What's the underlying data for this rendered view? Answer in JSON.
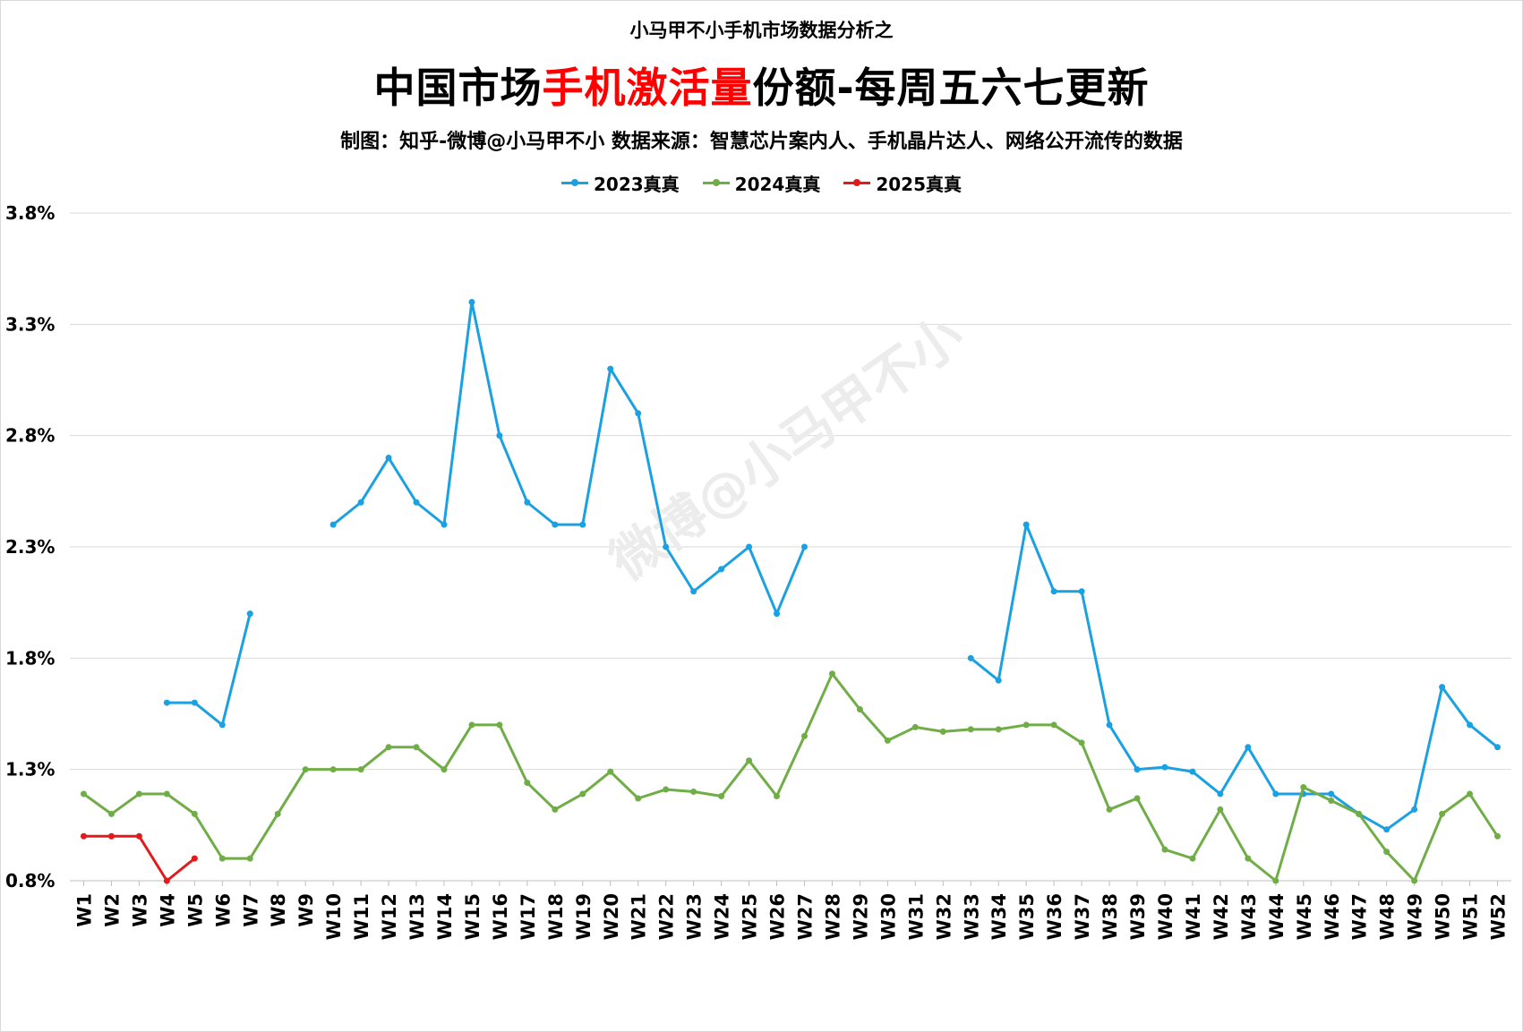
{
  "supertitle": "小马甲不小手机市场数据分析之",
  "title": {
    "prefix": "中国市场",
    "highlight": "手机激活量",
    "suffix": "份额-每周五六七更新"
  },
  "subtitle": "制图：知乎-微博@小马甲不小  数据来源：智慧芯片案内人、手机晶片达人、网络公开流传的数据",
  "watermark": "微博@小马甲不小",
  "colors": {
    "series_2023": "#1ba1e2",
    "series_2024": "#70ad47",
    "series_2025": "#e31a1c",
    "highlight": "#ff0000",
    "grid": "#d9d9d9"
  },
  "chart_data": {
    "type": "line",
    "title": "中国市场手机激活量份额-每周五六七更新",
    "xlabel": "",
    "ylabel": "",
    "ylim": [
      0.8,
      3.8
    ],
    "yticks": [
      "0.8%",
      "1.3%",
      "1.8%",
      "2.3%",
      "2.8%",
      "3.3%",
      "3.8%"
    ],
    "ytick_values": [
      0.8,
      1.3,
      1.8,
      2.3,
      2.8,
      3.3,
      3.8
    ],
    "grid": "horizontal",
    "legend_position": "top-center",
    "categories": [
      "W1",
      "W2",
      "W3",
      "W4",
      "W5",
      "W6",
      "W7",
      "W8",
      "W9",
      "W10",
      "W11",
      "W12",
      "W13",
      "W14",
      "W15",
      "W16",
      "W17",
      "W18",
      "W19",
      "W20",
      "W21",
      "W22",
      "W23",
      "W24",
      "W25",
      "W26",
      "W27",
      "W28",
      "W29",
      "W30",
      "W31",
      "W32",
      "W33",
      "W34",
      "W35",
      "W36",
      "W37",
      "W38",
      "W39",
      "W40",
      "W41",
      "W42",
      "W43",
      "W44",
      "W45",
      "W46",
      "W47",
      "W48",
      "W49",
      "W50",
      "W51",
      "W52"
    ],
    "series": [
      {
        "name": "2023真真",
        "color": "#1ba1e2",
        "values": [
          null,
          null,
          null,
          1.6,
          1.6,
          1.5,
          2.0,
          null,
          null,
          2.4,
          2.5,
          2.7,
          2.5,
          2.4,
          3.4,
          2.8,
          2.5,
          2.4,
          2.4,
          3.1,
          2.9,
          2.3,
          2.1,
          2.2,
          2.3,
          2.0,
          2.3,
          null,
          null,
          null,
          null,
          null,
          1.8,
          1.7,
          2.4,
          2.1,
          2.1,
          1.5,
          1.3,
          1.31,
          1.29,
          1.19,
          1.4,
          1.19,
          1.19,
          1.19,
          1.1,
          1.03,
          1.12,
          1.67,
          1.5,
          1.4
        ]
      },
      {
        "name": "2024真真",
        "color": "#70ad47",
        "values": [
          1.19,
          1.1,
          1.19,
          1.19,
          1.1,
          0.9,
          0.9,
          1.1,
          1.3,
          1.3,
          1.3,
          1.4,
          1.4,
          1.3,
          1.5,
          1.5,
          1.24,
          1.12,
          1.19,
          1.29,
          1.17,
          1.21,
          1.2,
          1.18,
          1.34,
          1.18,
          1.45,
          1.73,
          1.57,
          1.43,
          1.49,
          1.47,
          1.48,
          1.48,
          1.5,
          1.5,
          1.42,
          1.12,
          1.17,
          0.94,
          0.9,
          1.12,
          0.9,
          0.8,
          1.22,
          1.16,
          1.1,
          0.93,
          0.8,
          1.1,
          1.19,
          1.0
        ]
      },
      {
        "name": "2025真真",
        "color": "#e31a1c",
        "values": [
          1.0,
          1.0,
          1.0,
          0.8,
          0.9,
          null,
          null,
          null,
          null,
          null,
          null,
          null,
          null,
          null,
          null,
          null,
          null,
          null,
          null,
          null,
          null,
          null,
          null,
          null,
          null,
          null,
          null,
          null,
          null,
          null,
          null,
          null,
          null,
          null,
          null,
          null,
          null,
          null,
          null,
          null,
          null,
          null,
          null,
          null,
          null,
          null,
          null,
          null,
          null,
          null,
          null,
          null
        ]
      }
    ]
  }
}
